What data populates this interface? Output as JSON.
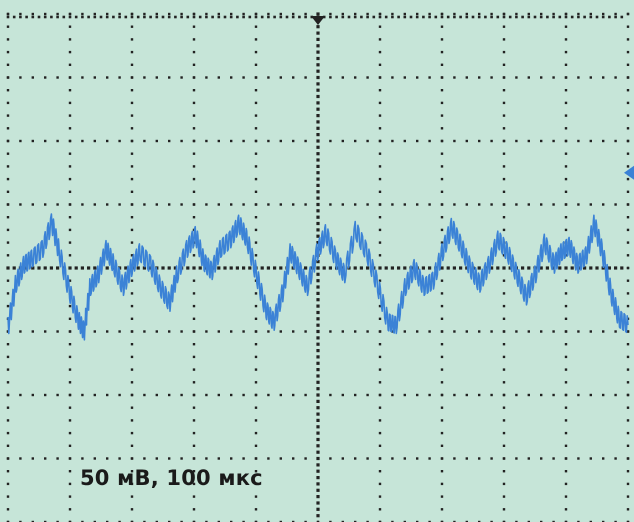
{
  "screen": {
    "scale_label": "50 мВ, 100 мкс",
    "background_color": "#c6e5d8",
    "grid_color": "#222222",
    "trace_color": "#3b82d6",
    "trigger_marker_color": "#222222",
    "level_marker_color": "#3b82d6"
  },
  "chart_data": {
    "type": "line",
    "grid": true,
    "divisions": {
      "x": 10,
      "y": 8
    },
    "xlim": [
      0,
      10
    ],
    "ylim": [
      -4,
      4
    ],
    "series": [
      {
        "values_div": [
          [
            0.0,
            -0.9
          ],
          [
            0.12,
            -0.25
          ],
          [
            0.25,
            0.05
          ],
          [
            0.38,
            0.15
          ],
          [
            0.55,
            0.3
          ],
          [
            0.7,
            0.72
          ],
          [
            0.82,
            0.25
          ],
          [
            0.98,
            -0.35
          ],
          [
            1.12,
            -0.8
          ],
          [
            1.22,
            -1.0
          ],
          [
            1.32,
            -0.3
          ],
          [
            1.45,
            -0.1
          ],
          [
            1.58,
            0.3
          ],
          [
            1.7,
            0.05
          ],
          [
            1.85,
            -0.3
          ],
          [
            1.98,
            0.0
          ],
          [
            2.12,
            0.25
          ],
          [
            2.3,
            0.05
          ],
          [
            2.45,
            -0.3
          ],
          [
            2.6,
            -0.55
          ],
          [
            2.72,
            -0.1
          ],
          [
            2.88,
            0.3
          ],
          [
            3.02,
            0.52
          ],
          [
            3.15,
            0.1
          ],
          [
            3.28,
            -0.05
          ],
          [
            3.42,
            0.3
          ],
          [
            3.58,
            0.45
          ],
          [
            3.72,
            0.7
          ],
          [
            3.85,
            0.45
          ],
          [
            4.0,
            -0.1
          ],
          [
            4.15,
            -0.65
          ],
          [
            4.28,
            -0.85
          ],
          [
            4.42,
            -0.4
          ],
          [
            4.55,
            0.25
          ],
          [
            4.68,
            0.0
          ],
          [
            4.82,
            -0.3
          ],
          [
            4.98,
            0.25
          ],
          [
            5.12,
            0.55
          ],
          [
            5.28,
            0.15
          ],
          [
            5.42,
            -0.1
          ],
          [
            5.6,
            0.6
          ],
          [
            5.78,
            0.25
          ],
          [
            5.95,
            -0.25
          ],
          [
            6.12,
            -0.85
          ],
          [
            6.25,
            -0.9
          ],
          [
            6.4,
            -0.3
          ],
          [
            6.55,
            0.0
          ],
          [
            6.7,
            -0.3
          ],
          [
            6.85,
            -0.2
          ],
          [
            7.0,
            0.25
          ],
          [
            7.15,
            0.65
          ],
          [
            7.3,
            0.35
          ],
          [
            7.45,
            0.0
          ],
          [
            7.6,
            -0.25
          ],
          [
            7.75,
            0.05
          ],
          [
            7.9,
            0.45
          ],
          [
            8.05,
            0.25
          ],
          [
            8.2,
            -0.1
          ],
          [
            8.35,
            -0.45
          ],
          [
            8.5,
            -0.1
          ],
          [
            8.65,
            0.4
          ],
          [
            8.8,
            0.05
          ],
          [
            8.92,
            0.25
          ],
          [
            9.05,
            0.35
          ],
          [
            9.18,
            0.05
          ],
          [
            9.32,
            0.2
          ],
          [
            9.45,
            0.7
          ],
          [
            9.58,
            0.25
          ],
          [
            9.72,
            -0.4
          ],
          [
            9.85,
            -0.8
          ],
          [
            10.0,
            -0.9
          ]
        ]
      }
    ]
  }
}
